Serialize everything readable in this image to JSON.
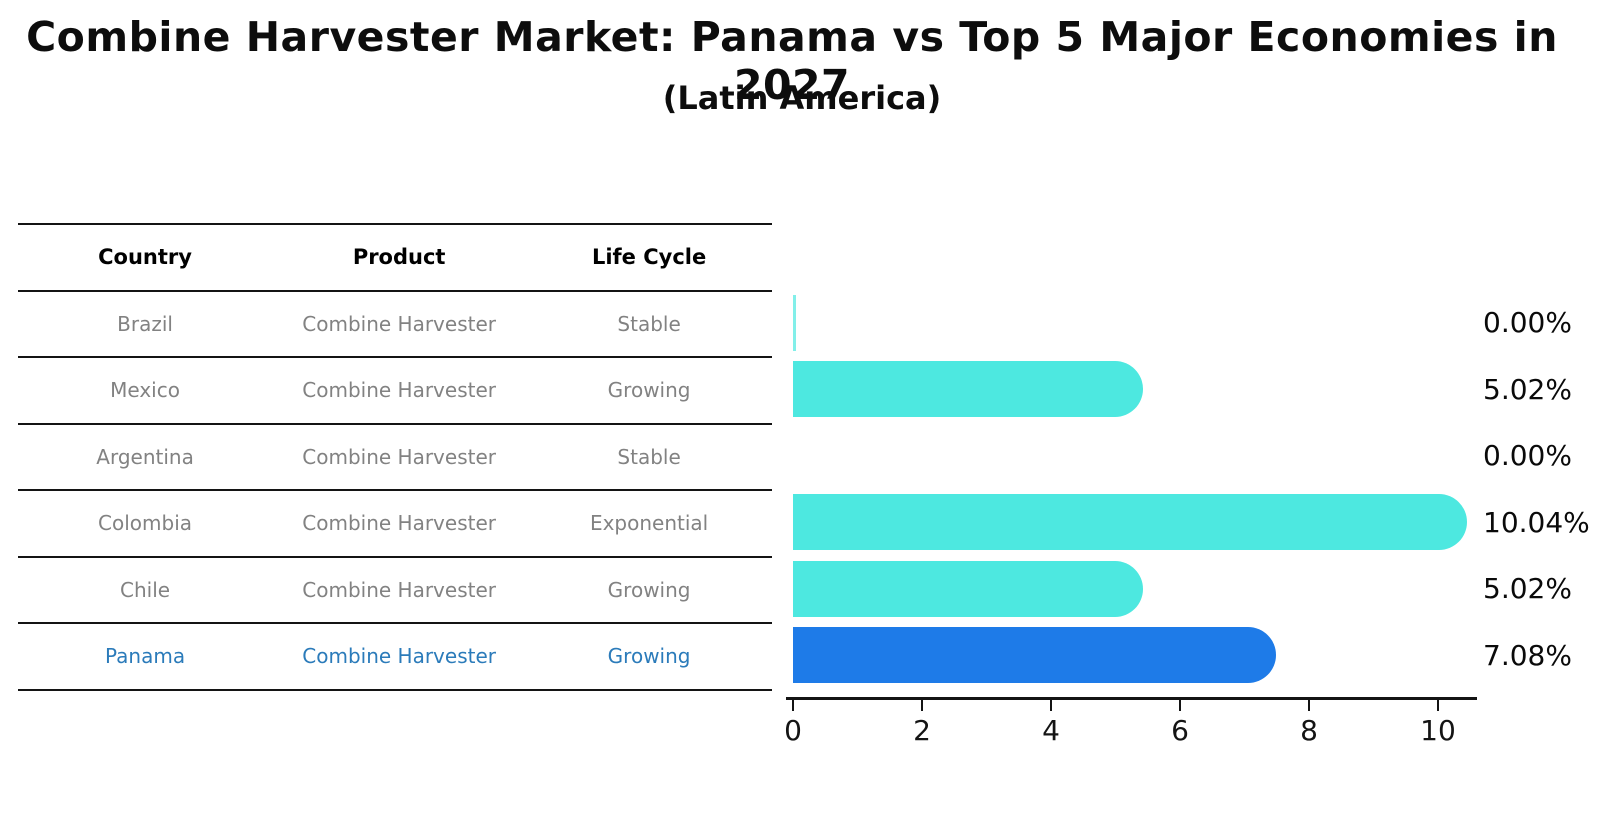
{
  "chart_data": {
    "type": "bar",
    "orientation": "horizontal",
    "title": "Combine Harvester Market: Panama vs Top 5 Major Economies in 2027",
    "subtitle": "(Latin America)",
    "categories": [
      "Brazil",
      "Mexico",
      "Argentina",
      "Colombia",
      "Chile",
      "Panama"
    ],
    "values": [
      0.0,
      5.02,
      0.0,
      10.04,
      5.02,
      7.08
    ],
    "value_labels": [
      "0.00%",
      "5.02%",
      "0.00%",
      "10.04%",
      "5.02%",
      "7.08%"
    ],
    "x_ticks": [
      0,
      2,
      4,
      6,
      8,
      10
    ],
    "xlim": [
      0,
      10.6
    ],
    "grid": false,
    "legend": false,
    "highlight_category": "Panama",
    "zero_value_sliver_categories": [
      "Brazil"
    ],
    "colors": {
      "bar": "#4DE8E0",
      "highlight_bar": "#1E7BE8",
      "highlight_text": "#2B7BBA",
      "row_text": "#828282",
      "axis": "#141414"
    }
  },
  "table": {
    "headers": [
      "Country",
      "Product",
      "Life Cycle"
    ],
    "rows": [
      {
        "country": "Brazil",
        "product": "Combine Harvester",
        "life_cycle": "Stable",
        "highlight": false
      },
      {
        "country": "Mexico",
        "product": "Combine Harvester",
        "life_cycle": "Growing",
        "highlight": false
      },
      {
        "country": "Argentina",
        "product": "Combine Harvester",
        "life_cycle": "Stable",
        "highlight": false
      },
      {
        "country": "Colombia",
        "product": "Combine Harvester",
        "life_cycle": "Exponential",
        "highlight": false
      },
      {
        "country": "Chile",
        "product": "Combine Harvester",
        "life_cycle": "Growing",
        "highlight": false
      },
      {
        "country": "Panama",
        "product": "Combine Harvester",
        "life_cycle": "Growing",
        "highlight": true
      }
    ]
  }
}
